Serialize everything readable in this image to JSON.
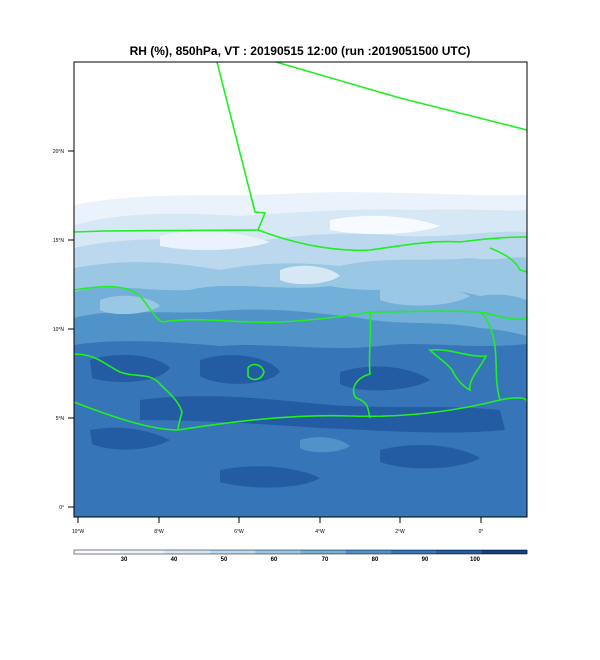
{
  "title": "RH (%), 850hPa, VT : 20190515  12:00 (run :2019051500 UTC)",
  "map": {
    "lat_ticks": [
      "20°N",
      "15°N",
      "10°N",
      "5°N",
      "0°"
    ],
    "lon_ticks": [
      "10°W",
      "8°W",
      "6°W",
      "4°W",
      "2°W",
      "0°"
    ],
    "border_color": "#22ee22"
  },
  "colorbar": {
    "labels": [
      "30",
      "40",
      "50",
      "60",
      "70",
      "80",
      "90",
      "100"
    ],
    "colors": [
      "#f7fbff",
      "#eaf3fb",
      "#d6e7f5",
      "#bcd8ee",
      "#9ac8e4",
      "#72afd9",
      "#4f93c9",
      "#3676b8",
      "#235ca2",
      "#153f83"
    ]
  }
}
